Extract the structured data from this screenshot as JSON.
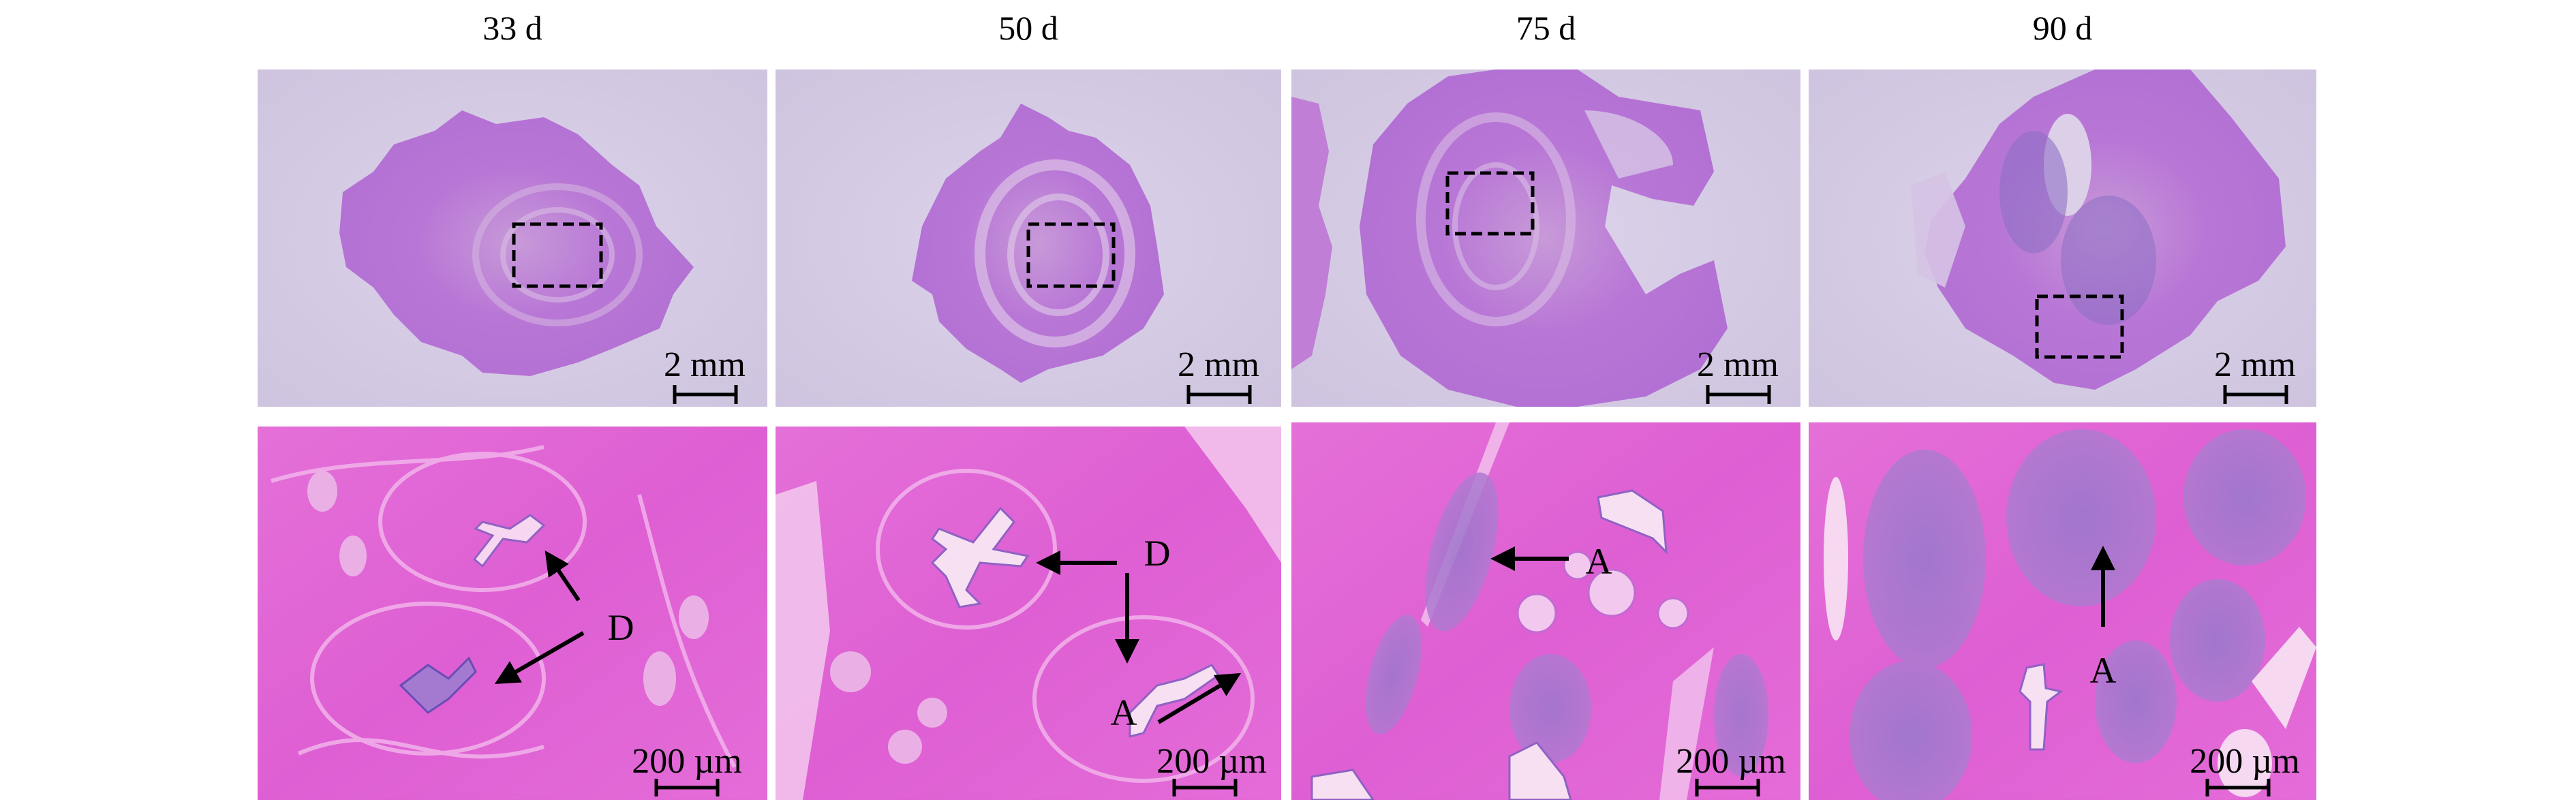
{
  "figure": {
    "columns": [
      {
        "label": "33 d",
        "top_scale": "2 mm",
        "bottom_scale": "200 µm",
        "annotations": [
          "D"
        ]
      },
      {
        "label": "50 d",
        "top_scale": "2 mm",
        "bottom_scale": "200 µm",
        "annotations": [
          "D",
          "A"
        ]
      },
      {
        "label": "75 d",
        "top_scale": "2 mm",
        "bottom_scale": "200 µm",
        "annotations": [
          "A"
        ]
      },
      {
        "label": "90 d",
        "top_scale": "2 mm",
        "bottom_scale": "200 µm",
        "annotations": [
          "A"
        ]
      }
    ]
  },
  "colors": {
    "slide_background": "#d8cde6",
    "tissue_low_mag": "#bb7ad8",
    "tissue_high_mag": "#e264d6",
    "lumen": "#f7dcf2",
    "basophilic_clusters": "#9d72c9",
    "annotation": "#000000"
  }
}
